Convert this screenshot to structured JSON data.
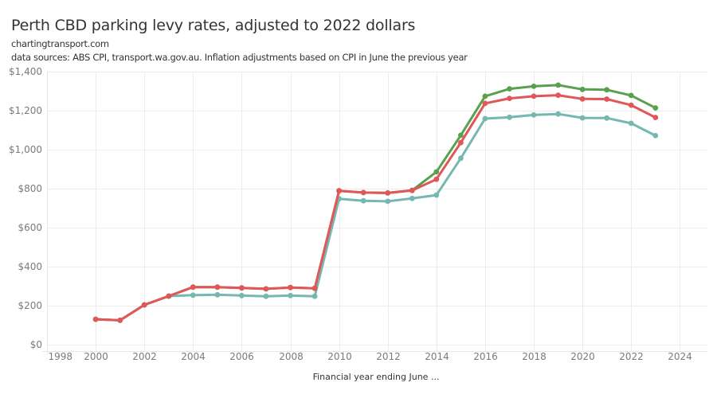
{
  "header": {
    "title": "Perth CBD parking levy rates, adjusted to 2022 dollars",
    "source_site": "chartingtransport.com",
    "note": "data sources: ABS CPI, transport.wa.gov.au. Inflation adjustments based on CPI in June the previous year"
  },
  "chart_data": {
    "type": "line",
    "title": "Perth CBD parking levy rates, adjusted to 2022 dollars",
    "subtitle": [
      "chartingtransport.com",
      "data sources: ABS CPI, transport.wa.gov.au. Inflation adjustments based on CPI in June the previous year"
    ],
    "xlabel": "Financial year ending June ...",
    "ylabel": "",
    "xlim": [
      1998,
      2025
    ],
    "ylim": [
      0,
      1400
    ],
    "x_ticks": [
      1998,
      2000,
      2002,
      2004,
      2006,
      2008,
      2010,
      2012,
      2014,
      2016,
      2018,
      2020,
      2022,
      2024
    ],
    "x_tick_labels": [
      "1998",
      "2000",
      "2002",
      "2004",
      "2006",
      "2008",
      "2010",
      "2012",
      "2014",
      "2016",
      "2018",
      "2020",
      "2022",
      "2024"
    ],
    "y_ticks": [
      0,
      200,
      400,
      600,
      800,
      1000,
      1200,
      1400
    ],
    "y_tick_labels": [
      "$0",
      "$200",
      "$400",
      "$600",
      "$800",
      "$1,000",
      "$1,200",
      "$1,400"
    ],
    "grid": true,
    "legend": "none",
    "x": [
      2000,
      2001,
      2002,
      2003,
      2004,
      2005,
      2006,
      2007,
      2008,
      2009,
      2010,
      2011,
      2012,
      2013,
      2014,
      2015,
      2016,
      2017,
      2018,
      2019,
      2020,
      2021,
      2022,
      2023
    ],
    "series": [
      {
        "name": "series-green",
        "color": "#59a14f",
        "values": [
          130,
          125,
          204,
          249,
          295,
          295,
          291,
          286,
          293,
          289,
          789,
          780,
          778,
          791,
          886,
          1074,
          1274,
          1312,
          1325,
          1331,
          1309,
          1307,
          1278,
          1214
        ]
      },
      {
        "name": "series-teal",
        "color": "#76b7b2",
        "values": [
          130,
          125,
          204,
          249,
          254,
          256,
          252,
          248,
          252,
          248,
          748,
          738,
          735,
          750,
          767,
          956,
          1159,
          1166,
          1178,
          1183,
          1163,
          1162,
          1135,
          1072
        ]
      },
      {
        "name": "series-red",
        "color": "#e15759",
        "values": [
          130,
          125,
          204,
          249,
          295,
          295,
          291,
          286,
          293,
          289,
          789,
          780,
          778,
          791,
          848,
          1036,
          1237,
          1263,
          1274,
          1279,
          1260,
          1259,
          1228,
          1165
        ]
      }
    ]
  }
}
